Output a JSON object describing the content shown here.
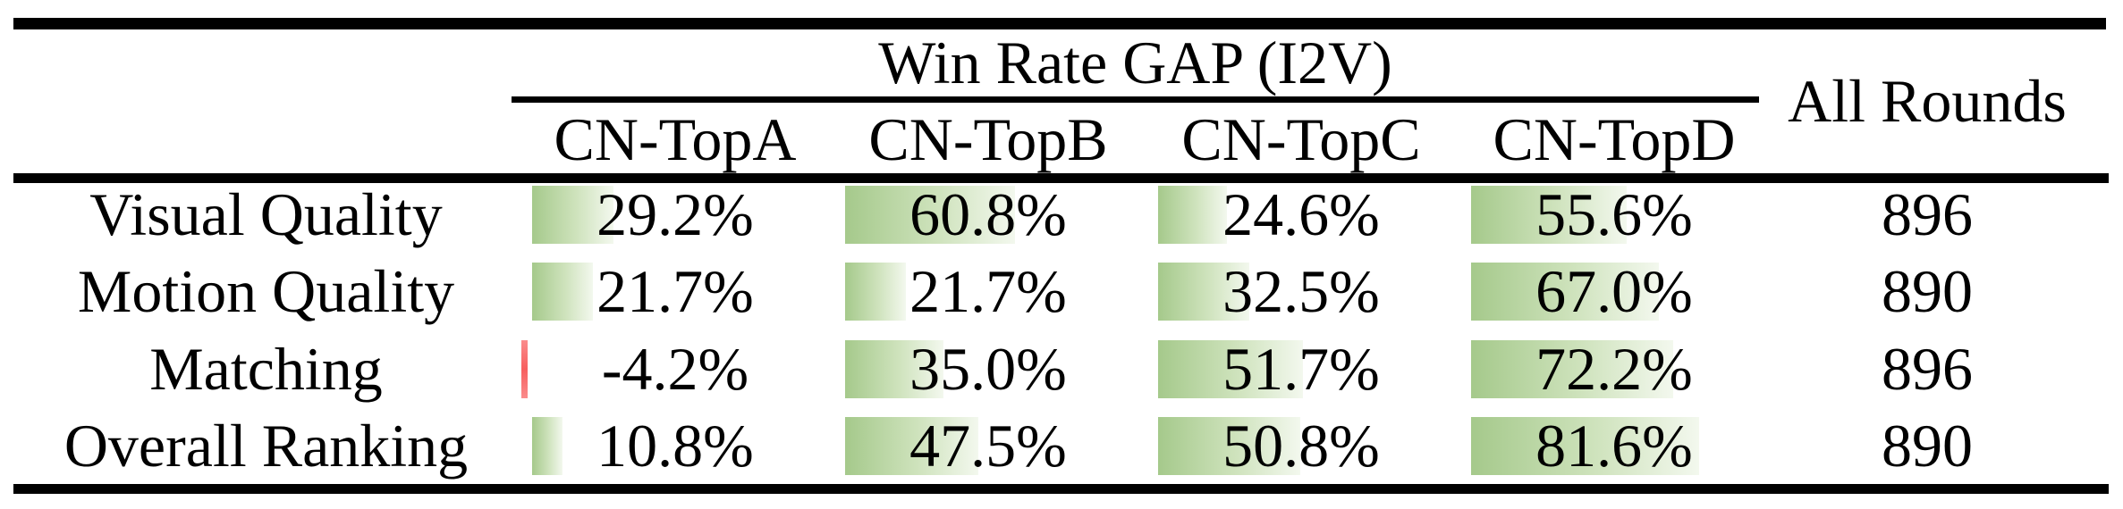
{
  "table": {
    "group_header": "Win Rate GAP (I2V)",
    "all_rounds_header": "All Rounds",
    "columns": [
      {
        "label": "CN-TopA"
      },
      {
        "label": "CN-TopB"
      },
      {
        "label": "CN-TopC"
      },
      {
        "label": "CN-TopD"
      }
    ],
    "rows": [
      {
        "label": "Visual Quality",
        "values": [
          "29.2%",
          "60.8%",
          "24.6%",
          "55.6%"
        ],
        "numeric": [
          29.2,
          60.8,
          24.6,
          55.6
        ],
        "all_rounds": "896"
      },
      {
        "label": "Motion Quality",
        "values": [
          "21.7%",
          "21.7%",
          "32.5%",
          "67.0%"
        ],
        "numeric": [
          21.7,
          21.7,
          32.5,
          67.0
        ],
        "all_rounds": "890"
      },
      {
        "label": "Matching",
        "values": [
          "-4.2%",
          "35.0%",
          "51.7%",
          "72.2%"
        ],
        "numeric": [
          -4.2,
          35.0,
          51.7,
          72.2
        ],
        "all_rounds": "896"
      },
      {
        "label": "Overall Ranking",
        "values": [
          "10.8%",
          "47.5%",
          "50.8%",
          "81.6%"
        ],
        "numeric": [
          10.8,
          47.5,
          50.8,
          81.6
        ],
        "all_rounds": "890"
      }
    ],
    "colors": {
      "positive_bar_start": "#a5c98b",
      "positive_bar_end": "#f3f8ee",
      "negative_bar": "#f76c6c",
      "rule": "#000000"
    }
  },
  "chart_data": {
    "type": "table",
    "title": "Win Rate GAP (I2V)",
    "categories": [
      "CN-TopA",
      "CN-TopB",
      "CN-TopC",
      "CN-TopD"
    ],
    "series": [
      {
        "name": "Visual Quality",
        "values": [
          29.2,
          60.8,
          24.6,
          55.6
        ],
        "all_rounds": 896
      },
      {
        "name": "Motion Quality",
        "values": [
          21.7,
          21.7,
          32.5,
          67.0
        ],
        "all_rounds": 890
      },
      {
        "name": "Matching",
        "values": [
          -4.2,
          35.0,
          51.7,
          72.2
        ],
        "all_rounds": 896
      },
      {
        "name": "Overall Ranking",
        "values": [
          10.8,
          47.5,
          50.8,
          81.6
        ],
        "all_rounds": 890
      }
    ],
    "unit": "percent",
    "bar_scale": [
      0,
      100
    ],
    "note": "in-cell data bars; green gradient = positive, red = negative"
  }
}
